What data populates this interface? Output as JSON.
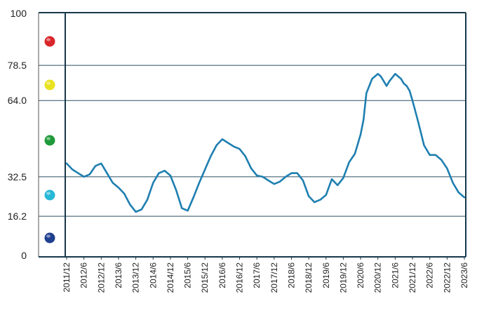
{
  "chart_data": {
    "type": "line",
    "title": "",
    "xlabel": "",
    "ylabel": "",
    "ylim": [
      0,
      100
    ],
    "grid": true,
    "legend_markers": [
      "#d9262a",
      "#e9e21f",
      "#1f9a3a",
      "#27b8d6",
      "#1f3f8f"
    ],
    "y_ticks": [
      {
        "value": 0,
        "label": "0"
      },
      {
        "value": 16.2,
        "label": "16.2"
      },
      {
        "value": 32.5,
        "label": "32.5"
      },
      {
        "value": 64.0,
        "label": "64.0"
      },
      {
        "value": 78.5,
        "label": "78.5"
      },
      {
        "value": 100,
        "label": "100"
      }
    ],
    "x_ticks": [
      "2011/12",
      "2012/6",
      "2012/12",
      "2013/6",
      "2013/12",
      "2014/6",
      "2014/12",
      "2015/6",
      "2015/12",
      "2016/6",
      "2016/12",
      "2017/6",
      "2017/12",
      "2018/6",
      "2018/12",
      "2019/6",
      "2019/12",
      "2020/6",
      "2020/12",
      "2021/6",
      "2021/12",
      "2022/6",
      "2022/12",
      "2023/6"
    ],
    "line_color": "#1e7fb0",
    "series": [
      {
        "x": [
          "2011/12",
          "2012/2",
          "2012/4",
          "2012/6",
          "2012/8",
          "2012/10",
          "2012/12",
          "2013/2",
          "2013/4",
          "2013/6",
          "2013/8",
          "2013/10",
          "2013/12",
          "2014/2",
          "2014/4",
          "2014/6",
          "2014/8",
          "2014/10",
          "2014/12",
          "2015/2",
          "2015/4",
          "2015/6",
          "2015/8",
          "2015/10",
          "2015/12",
          "2016/2",
          "2016/4",
          "2016/6",
          "2016/8",
          "2016/10",
          "2016/12",
          "2017/2",
          "2017/4",
          "2017/6",
          "2017/8",
          "2017/10",
          "2017/12",
          "2018/2",
          "2018/4",
          "2018/6",
          "2018/8",
          "2018/10",
          "2018/12",
          "2019/2",
          "2019/4",
          "2019/6",
          "2019/8",
          "2019/10",
          "2019/12",
          "2020/2",
          "2020/4",
          "2020/6",
          "2020/7",
          "2020/8",
          "2020/10",
          "2020/12",
          "2021/1",
          "2021/2",
          "2021/3",
          "2021/4",
          "2021/6",
          "2021/8",
          "2021/9",
          "2021/10",
          "2021/11",
          "2021/12",
          "2022/2",
          "2022/4",
          "2022/6",
          "2022/8",
          "2022/10",
          "2022/12",
          "2023/2",
          "2023/4",
          "2023/6"
        ],
        "values": [
          38,
          35.5,
          34,
          32.5,
          33.5,
          37,
          38,
          34,
          30,
          28,
          25.5,
          21,
          18,
          19,
          23,
          30,
          34,
          35,
          33,
          27,
          19.5,
          18.5,
          24,
          30,
          35.5,
          41,
          45.5,
          48,
          46.5,
          45,
          44,
          41,
          36,
          33,
          32.5,
          31,
          29.5,
          30.5,
          32.5,
          34,
          34,
          31,
          24.5,
          22,
          23,
          25,
          31.5,
          29,
          32,
          38.5,
          42,
          50,
          56,
          67,
          73,
          75,
          74,
          72,
          70,
          72,
          75,
          73,
          71,
          70,
          68,
          64,
          55,
          45.5,
          41.5,
          41.5,
          39.5,
          36,
          30,
          26,
          24
        ]
      }
    ]
  }
}
